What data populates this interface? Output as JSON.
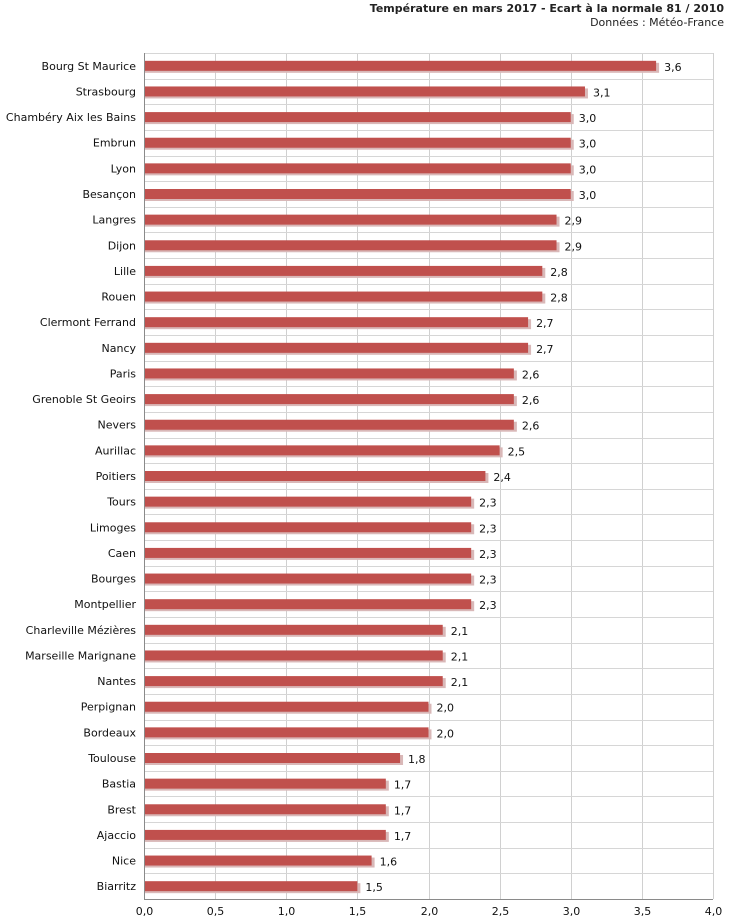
{
  "chart_data": {
    "type": "bar",
    "orientation": "horizontal",
    "title": "Température en mars 2017 - Ecart à la normale 81 / 2010",
    "subtitle": "Données : Météo-France",
    "xlabel": "",
    "ylabel": "",
    "xlim": [
      0,
      4
    ],
    "grid": true,
    "bar_color": "#c0504d",
    "shadow_color": "#d9b8b8",
    "x_ticks": [
      "0,0",
      "0,5",
      "1,0",
      "1,5",
      "2,0",
      "2,5",
      "3,0",
      "3,5",
      "4,0"
    ],
    "categories": [
      "Bourg St Maurice",
      "Strasbourg",
      "Chambéry Aix les Bains",
      "Embrun",
      "Lyon",
      "Besançon",
      "Langres",
      "Dijon",
      "Lille",
      "Rouen",
      "Clermont Ferrand",
      "Nancy",
      "Paris",
      "Grenoble St Geoirs",
      "Nevers",
      "Aurillac",
      "Poitiers",
      "Tours",
      "Limoges",
      "Caen",
      "Bourges",
      "Montpellier",
      "Charleville Mézières",
      "Marseille Marignane",
      "Nantes",
      "Perpignan",
      "Bordeaux",
      "Toulouse",
      "Bastia",
      "Brest",
      "Ajaccio",
      "Nice",
      "Biarritz"
    ],
    "values": [
      3.6,
      3.1,
      3.0,
      3.0,
      3.0,
      3.0,
      2.9,
      2.9,
      2.8,
      2.8,
      2.7,
      2.7,
      2.6,
      2.6,
      2.6,
      2.5,
      2.4,
      2.3,
      2.3,
      2.3,
      2.3,
      2.3,
      2.1,
      2.1,
      2.1,
      2.0,
      2.0,
      1.8,
      1.7,
      1.7,
      1.7,
      1.6,
      1.5
    ],
    "value_labels": [
      "3,6",
      "3,1",
      "3,0",
      "3,0",
      "3,0",
      "3,0",
      "2,9",
      "2,9",
      "2,8",
      "2,8",
      "2,7",
      "2,7",
      "2,6",
      "2,6",
      "2,6",
      "2,5",
      "2,4",
      "2,3",
      "2,3",
      "2,3",
      "2,3",
      "2,3",
      "2,1",
      "2,1",
      "2,1",
      "2,0",
      "2,0",
      "1,8",
      "1,7",
      "1,7",
      "1,7",
      "1,6",
      "1,5"
    ]
  }
}
